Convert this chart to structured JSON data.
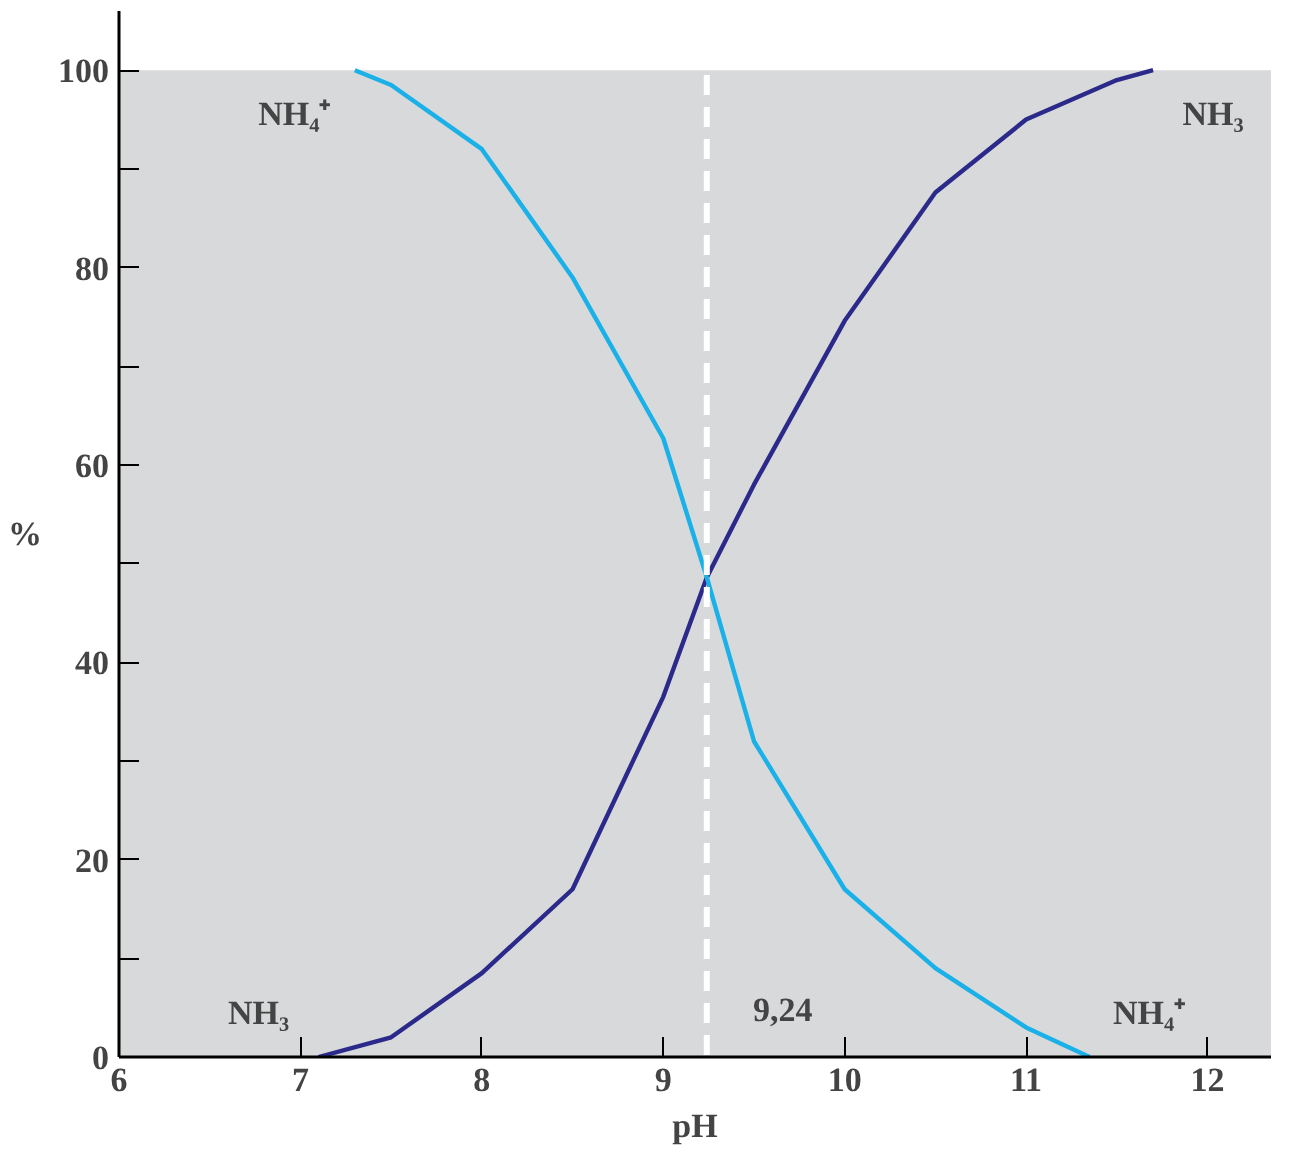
{
  "chart_data": {
    "type": "line",
    "xlabel": "pH",
    "ylabel": "%",
    "xlim": [
      6,
      12.35
    ],
    "ylim": [
      0,
      106
    ],
    "xticks": [
      6,
      7,
      8,
      9,
      10,
      11,
      12
    ],
    "yticks": [
      0,
      {
        "value": 10,
        "label": null
      },
      20,
      {
        "value": 30,
        "label": null
      },
      40,
      {
        "value": 50,
        "label": null
      },
      60,
      {
        "value": 70,
        "label": null
      },
      80,
      {
        "value": 90,
        "label": null
      },
      100
    ],
    "series": [
      {
        "name": "NH₃",
        "color": "#2b2a8a",
        "x": [
          7.1,
          7.5,
          8,
          8.5,
          9,
          9.24,
          9.5,
          10,
          10.5,
          11,
          11.5,
          11.7
        ],
        "values": [
          0,
          2,
          8.5,
          17,
          36.5,
          48.6,
          58,
          74.6,
          87.6,
          95,
          99,
          100
        ]
      },
      {
        "name": "NH₄⁺",
        "color": "#1ab0e8",
        "x": [
          7.3,
          7.5,
          8,
          8.5,
          9,
          9.24,
          9.5,
          10,
          10.5,
          11,
          11.35
        ],
        "values": [
          100,
          98.5,
          92,
          79,
          62.7,
          48.6,
          32,
          17,
          9,
          3,
          0
        ]
      }
    ],
    "ref_lines": [
      {
        "axis": "x",
        "value": 9.24,
        "label": "9,24",
        "color": "#ffffff",
        "line_style": "dashed"
      }
    ],
    "bands": [
      {
        "axis": "y",
        "from": 0,
        "to": 100,
        "color": "#d8d9db"
      }
    ],
    "grid": false,
    "marker": "none",
    "line_style": "solid"
  }
}
